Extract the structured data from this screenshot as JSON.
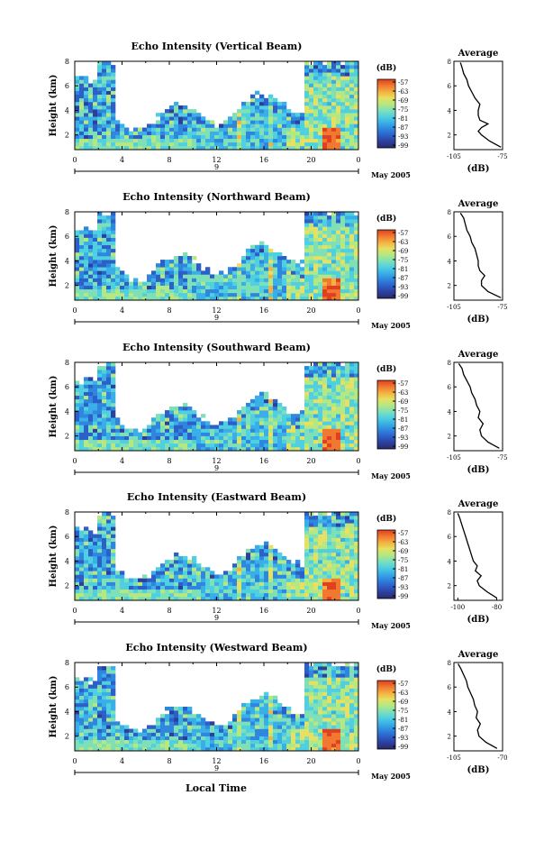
{
  "shared": {
    "ylabel": "Height (km)",
    "x_ticks": [
      "0",
      "4",
      "8",
      "12",
      "16",
      "20",
      "0"
    ],
    "day_label": "9",
    "month_label": "May 2005",
    "xlabel": "Local Time",
    "colorbar_unit": "(dB)",
    "colorbar_ticks": [
      "-57",
      "-63",
      "-69",
      "-75",
      "-81",
      "-87",
      "-93",
      "-99"
    ],
    "profile_title": "Average",
    "profile_xlabel": "(dB)",
    "colormap": [
      "#2a2a6a",
      "#2d3f9c",
      "#2d5fc8",
      "#2f86de",
      "#3aaee6",
      "#4fd0e0",
      "#7fe0b8",
      "#b5e880",
      "#e8e060",
      "#f4b040",
      "#f07830",
      "#e04020"
    ]
  },
  "chart_data": [
    {
      "type": "heatmap",
      "title": "Echo Intensity (Vertical Beam)",
      "ylim": [
        0.8,
        8
      ],
      "yticks": [
        2,
        4,
        6,
        8
      ],
      "xlim": [
        0,
        24
      ],
      "color_range_db": [
        -99,
        -57
      ],
      "profile": {
        "xticks": [
          "-105",
          "-75"
        ],
        "xlim": [
          -105,
          -75
        ],
        "ylim": [
          0.8,
          8
        ],
        "heights": [
          1.0,
          1.5,
          2.0,
          2.3,
          2.6,
          2.9,
          3.2,
          3.6,
          4.0,
          4.5,
          5.0,
          5.5,
          6.0,
          6.5,
          7.0,
          7.5,
          7.9
        ],
        "values": [
          -76,
          -83,
          -88,
          -90,
          -88,
          -84,
          -89,
          -90,
          -90,
          -89,
          -92,
          -94,
          -96,
          -97,
          -99,
          -100,
          -101
        ]
      }
    },
    {
      "type": "heatmap",
      "title": "Echo Intensity (Northward Beam)",
      "ylim": [
        0.8,
        8
      ],
      "yticks": [
        2,
        4,
        6,
        8
      ],
      "xlim": [
        0,
        24
      ],
      "color_range_db": [
        -99,
        -57
      ],
      "profile": {
        "xticks": [
          "-105",
          "-75"
        ],
        "xlim": [
          -105,
          -75
        ],
        "ylim": [
          0.8,
          8
        ],
        "heights": [
          1.0,
          1.5,
          2.0,
          2.4,
          2.8,
          3.2,
          3.6,
          4.0,
          4.5,
          5.0,
          5.5,
          6.0,
          6.5,
          7.0,
          7.5,
          7.9
        ],
        "values": [
          -76,
          -84,
          -88,
          -88,
          -86,
          -89,
          -90,
          -90,
          -91,
          -92,
          -94,
          -95,
          -97,
          -98,
          -99,
          -101
        ]
      }
    },
    {
      "type": "heatmap",
      "title": "Echo Intensity (Southward Beam)",
      "ylim": [
        0.8,
        8
      ],
      "yticks": [
        2,
        4,
        6,
        8
      ],
      "xlim": [
        0,
        24
      ],
      "color_range_db": [
        -99,
        -57
      ],
      "profile": {
        "xticks": [
          "-105",
          "-75"
        ],
        "xlim": [
          -105,
          -75
        ],
        "ylim": [
          0.8,
          8
        ],
        "heights": [
          1.0,
          1.5,
          2.0,
          2.5,
          3.0,
          3.5,
          4.0,
          4.5,
          5.0,
          5.5,
          6.0,
          6.5,
          7.0,
          7.5,
          7.9
        ],
        "values": [
          -77,
          -84,
          -88,
          -89,
          -87,
          -90,
          -89,
          -91,
          -92,
          -94,
          -95,
          -97,
          -99,
          -100,
          -102
        ]
      }
    },
    {
      "type": "heatmap",
      "title": "Echo Intensity (Eastward Beam)",
      "ylim": [
        0.8,
        8
      ],
      "yticks": [
        2,
        4,
        6,
        8
      ],
      "xlim": [
        0,
        24
      ],
      "color_range_db": [
        -99,
        -57
      ],
      "profile": {
        "xticks": [
          "-100",
          "-80"
        ],
        "xlim": [
          -102,
          -77
        ],
        "ylim": [
          0.8,
          8
        ],
        "heights": [
          1.0,
          1.5,
          2.0,
          2.4,
          2.8,
          3.2,
          3.6,
          4.0,
          4.5,
          5.0,
          5.5,
          6.0,
          6.5,
          7.0,
          7.5,
          7.9
        ],
        "values": [
          -80,
          -85,
          -89,
          -90,
          -88,
          -91,
          -90,
          -92,
          -93,
          -94,
          -95,
          -96,
          -97,
          -98,
          -99,
          -100
        ]
      }
    },
    {
      "type": "heatmap",
      "title": "Echo Intensity (Westward Beam)",
      "ylim": [
        0.8,
        8
      ],
      "yticks": [
        2,
        4,
        6,
        8
      ],
      "xlim": [
        0,
        24
      ],
      "color_range_db": [
        -99,
        -57
      ],
      "profile": {
        "xticks": [
          "-105",
          "-70"
        ],
        "xlim": [
          -105,
          -70
        ],
        "ylim": [
          0.8,
          8
        ],
        "heights": [
          1.0,
          1.5,
          2.0,
          2.5,
          3.0,
          3.5,
          4.0,
          4.5,
          5.0,
          5.5,
          6.0,
          6.5,
          7.0,
          7.5,
          7.9
        ],
        "values": [
          -74,
          -82,
          -87,
          -88,
          -86,
          -89,
          -88,
          -90,
          -91,
          -93,
          -95,
          -96,
          -98,
          -100,
          -102
        ]
      }
    }
  ]
}
